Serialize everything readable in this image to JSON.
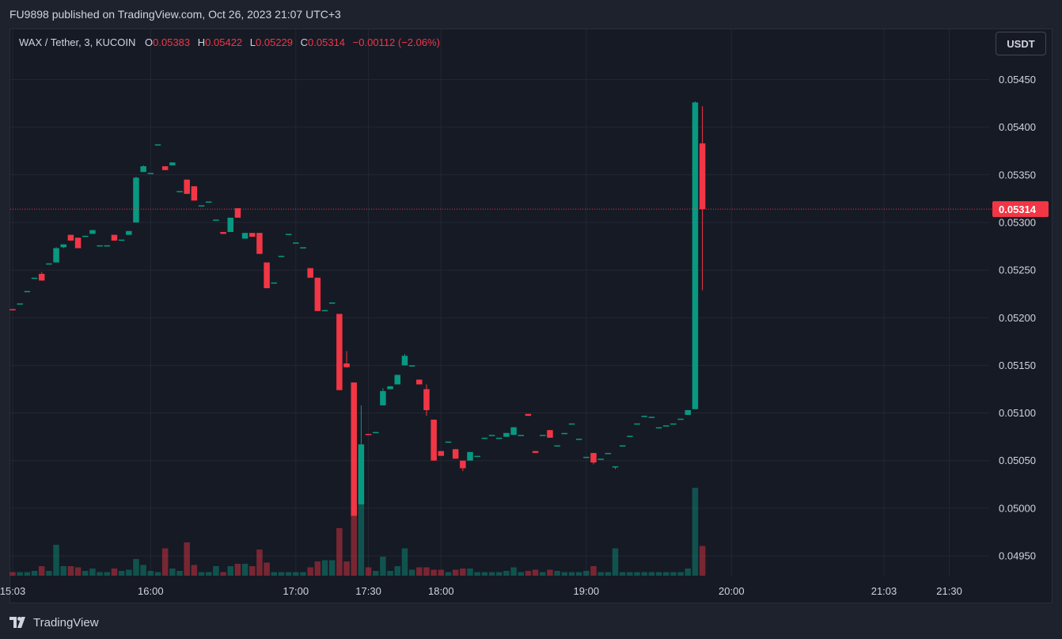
{
  "header": {
    "published_text": "FU9898 published on TradingView.com, Oct 26, 2023 21:07 UTC+3"
  },
  "legend": {
    "symbol": "WAX / Tether, 3, KUCOIN",
    "o_label": "O",
    "o_value": "0.05383",
    "h_label": "H",
    "h_value": "0.05422",
    "l_label": "L",
    "l_value": "0.05229",
    "c_label": "C",
    "c_value": "0.05314",
    "change": "−0.00112 (−2.06%)"
  },
  "currency_button": "USDT",
  "footer": {
    "brand": "TradingView"
  },
  "colors": {
    "up": "#089981",
    "down": "#f23645",
    "background": "#161a25",
    "grid": "#232733",
    "text": "#d1d4dc"
  },
  "chart_data": {
    "type": "candlestick",
    "interval": "3",
    "exchange": "KUCOIN",
    "pair": "WAX / Tether",
    "price_axis_ticks": [
      "0.05450",
      "0.05400",
      "0.05350",
      "0.05300",
      "0.05250",
      "0.05200",
      "0.05150",
      "0.05100",
      "0.05050",
      "0.05000",
      "0.04950"
    ],
    "time_axis_ticks": [
      "15:03",
      "16:00",
      "17:00",
      "17:30",
      "18:00",
      "19:00",
      "20:00",
      "21:03",
      "21:30"
    ],
    "ylim": [
      0.04927,
      0.05475
    ],
    "last_price": "0.05314",
    "time_labels_at_minutes": [
      903,
      960,
      1020,
      1050,
      1080,
      1140,
      1200,
      1263,
      1290
    ],
    "candles": [
      {
        "t": 903,
        "o": 0.05209,
        "h": 0.05209,
        "l": 0.05208,
        "c": 0.05208,
        "v": 0.3
      },
      {
        "t": 906,
        "o": 0.05215,
        "h": 0.05215,
        "l": 0.05215,
        "c": 0.05215,
        "v": 0.3
      },
      {
        "t": 909,
        "o": 0.05227,
        "h": 0.05228,
        "l": 0.05227,
        "c": 0.05228,
        "v": 0.3
      },
      {
        "t": 912,
        "o": 0.05241,
        "h": 0.05242,
        "l": 0.05241,
        "c": 0.05242,
        "v": 0.4
      },
      {
        "t": 915,
        "o": 0.05246,
        "h": 0.05248,
        "l": 0.05239,
        "c": 0.05239,
        "v": 0.8
      },
      {
        "t": 918,
        "o": 0.05256,
        "h": 0.05257,
        "l": 0.05256,
        "c": 0.05257,
        "v": 0.4
      },
      {
        "t": 921,
        "o": 0.05258,
        "h": 0.05274,
        "l": 0.05258,
        "c": 0.05273,
        "v": 2.6
      },
      {
        "t": 924,
        "o": 0.05274,
        "h": 0.05277,
        "l": 0.05273,
        "c": 0.05277,
        "v": 0.8
      },
      {
        "t": 927,
        "o": 0.05287,
        "h": 0.05287,
        "l": 0.05281,
        "c": 0.05281,
        "v": 0.8
      },
      {
        "t": 930,
        "o": 0.05284,
        "h": 0.05284,
        "l": 0.05273,
        "c": 0.05273,
        "v": 0.7
      },
      {
        "t": 933,
        "o": 0.05285,
        "h": 0.05286,
        "l": 0.05285,
        "c": 0.05286,
        "v": 0.4
      },
      {
        "t": 936,
        "o": 0.05288,
        "h": 0.05292,
        "l": 0.05288,
        "c": 0.05292,
        "v": 0.6
      },
      {
        "t": 939,
        "o": 0.05276,
        "h": 0.05276,
        "l": 0.05276,
        "c": 0.05276,
        "v": 0.3
      },
      {
        "t": 942,
        "o": 0.05276,
        "h": 0.05276,
        "l": 0.05276,
        "c": 0.05276,
        "v": 0.3
      },
      {
        "t": 945,
        "o": 0.05287,
        "h": 0.05287,
        "l": 0.05281,
        "c": 0.05281,
        "v": 0.6
      },
      {
        "t": 948,
        "o": 0.05282,
        "h": 0.05282,
        "l": 0.05282,
        "c": 0.05282,
        "v": 0.4
      },
      {
        "t": 951,
        "o": 0.05287,
        "h": 0.05291,
        "l": 0.05287,
        "c": 0.05291,
        "v": 0.5
      },
      {
        "t": 954,
        "o": 0.053,
        "h": 0.05348,
        "l": 0.053,
        "c": 0.05347,
        "v": 1.4
      },
      {
        "t": 957,
        "o": 0.05353,
        "h": 0.0536,
        "l": 0.05353,
        "c": 0.05359,
        "v": 0.9
      },
      {
        "t": 960,
        "o": 0.05352,
        "h": 0.05352,
        "l": 0.05352,
        "c": 0.05352,
        "v": 0.4
      },
      {
        "t": 963,
        "o": 0.05382,
        "h": 0.05382,
        "l": 0.05382,
        "c": 0.05382,
        "v": 0.3
      },
      {
        "t": 966,
        "o": 0.05359,
        "h": 0.05359,
        "l": 0.05355,
        "c": 0.05355,
        "v": 2.3
      },
      {
        "t": 969,
        "o": 0.0536,
        "h": 0.05363,
        "l": 0.0536,
        "c": 0.05363,
        "v": 0.6
      },
      {
        "t": 972,
        "o": 0.05333,
        "h": 0.05333,
        "l": 0.05333,
        "c": 0.05333,
        "v": 0.4
      },
      {
        "t": 975,
        "o": 0.05345,
        "h": 0.05345,
        "l": 0.0533,
        "c": 0.0533,
        "v": 2.8
      },
      {
        "t": 978,
        "o": 0.05338,
        "h": 0.05338,
        "l": 0.05323,
        "c": 0.05323,
        "v": 0.9
      },
      {
        "t": 981,
        "o": 0.05318,
        "h": 0.05318,
        "l": 0.05318,
        "c": 0.05318,
        "v": 0.3
      },
      {
        "t": 984,
        "o": 0.05322,
        "h": 0.05322,
        "l": 0.05322,
        "c": 0.05322,
        "v": 0.3
      },
      {
        "t": 987,
        "o": 0.05303,
        "h": 0.05303,
        "l": 0.05303,
        "c": 0.05303,
        "v": 0.8
      },
      {
        "t": 990,
        "o": 0.0529,
        "h": 0.0529,
        "l": 0.05288,
        "c": 0.05288,
        "v": 0.3
      },
      {
        "t": 993,
        "o": 0.0529,
        "h": 0.05305,
        "l": 0.0529,
        "c": 0.05305,
        "v": 0.8
      },
      {
        "t": 996,
        "o": 0.05315,
        "h": 0.05315,
        "l": 0.05305,
        "c": 0.05305,
        "v": 1.0
      },
      {
        "t": 999,
        "o": 0.05283,
        "h": 0.05289,
        "l": 0.05283,
        "c": 0.05289,
        "v": 1.0
      },
      {
        "t": 1002,
        "o": 0.05289,
        "h": 0.05289,
        "l": 0.05285,
        "c": 0.05285,
        "v": 0.8
      },
      {
        "t": 1005,
        "o": 0.05289,
        "h": 0.05289,
        "l": 0.05267,
        "c": 0.05267,
        "v": 2.2
      },
      {
        "t": 1008,
        "o": 0.05258,
        "h": 0.05258,
        "l": 0.05231,
        "c": 0.05231,
        "v": 1.1
      },
      {
        "t": 1011,
        "o": 0.05237,
        "h": 0.05237,
        "l": 0.05237,
        "c": 0.05237,
        "v": 0.3
      },
      {
        "t": 1014,
        "o": 0.05265,
        "h": 0.05265,
        "l": 0.05265,
        "c": 0.05265,
        "v": 0.3
      },
      {
        "t": 1017,
        "o": 0.05288,
        "h": 0.05288,
        "l": 0.05288,
        "c": 0.05288,
        "v": 0.3
      },
      {
        "t": 1020,
        "o": 0.05279,
        "h": 0.05279,
        "l": 0.05279,
        "c": 0.05279,
        "v": 0.3
      },
      {
        "t": 1023,
        "o": 0.05274,
        "h": 0.05274,
        "l": 0.05274,
        "c": 0.05274,
        "v": 0.3
      },
      {
        "t": 1026,
        "o": 0.05252,
        "h": 0.05252,
        "l": 0.05242,
        "c": 0.05242,
        "v": 0.7
      },
      {
        "t": 1029,
        "o": 0.05242,
        "h": 0.05242,
        "l": 0.05207,
        "c": 0.05207,
        "v": 1.2
      },
      {
        "t": 1032,
        "o": 0.05208,
        "h": 0.05208,
        "l": 0.05208,
        "c": 0.05208,
        "v": 1.3
      },
      {
        "t": 1035,
        "o": 0.05216,
        "h": 0.05216,
        "l": 0.05216,
        "c": 0.05216,
        "v": 1.3
      },
      {
        "t": 1038,
        "o": 0.05204,
        "h": 0.05204,
        "l": 0.05124,
        "c": 0.05124,
        "v": 4.0
      },
      {
        "t": 1041,
        "o": 0.05152,
        "h": 0.05165,
        "l": 0.05148,
        "c": 0.05148,
        "v": 1.2
      },
      {
        "t": 1044,
        "o": 0.05132,
        "h": 0.05132,
        "l": 0.04992,
        "c": 0.04992,
        "v": 11.2
      },
      {
        "t": 1047,
        "o": 0.05004,
        "h": 0.05108,
        "l": 0.05004,
        "c": 0.05067,
        "v": 9.0
      },
      {
        "t": 1050,
        "o": 0.05078,
        "h": 0.05078,
        "l": 0.05077,
        "c": 0.05077,
        "v": 0.7
      },
      {
        "t": 1053,
        "o": 0.0508,
        "h": 0.0508,
        "l": 0.0508,
        "c": 0.0508,
        "v": 0.4
      },
      {
        "t": 1056,
        "o": 0.05108,
        "h": 0.05126,
        "l": 0.05108,
        "c": 0.05123,
        "v": 1.6
      },
      {
        "t": 1059,
        "o": 0.05125,
        "h": 0.05128,
        "l": 0.05125,
        "c": 0.05128,
        "v": 0.4
      },
      {
        "t": 1062,
        "o": 0.0513,
        "h": 0.0514,
        "l": 0.0513,
        "c": 0.0514,
        "v": 0.8
      },
      {
        "t": 1065,
        "o": 0.0515,
        "h": 0.05162,
        "l": 0.0515,
        "c": 0.0516,
        "v": 2.3
      },
      {
        "t": 1068,
        "o": 0.0515,
        "h": 0.0515,
        "l": 0.0515,
        "c": 0.0515,
        "v": 0.5
      },
      {
        "t": 1071,
        "o": 0.05135,
        "h": 0.05135,
        "l": 0.0513,
        "c": 0.0513,
        "v": 0.7
      },
      {
        "t": 1074,
        "o": 0.05125,
        "h": 0.0513,
        "l": 0.05097,
        "c": 0.05103,
        "v": 0.7
      },
      {
        "t": 1077,
        "o": 0.05093,
        "h": 0.05093,
        "l": 0.0505,
        "c": 0.0505,
        "v": 0.5
      },
      {
        "t": 1080,
        "o": 0.0506,
        "h": 0.0506,
        "l": 0.05055,
        "c": 0.05055,
        "v": 0.5
      },
      {
        "t": 1083,
        "o": 0.0507,
        "h": 0.0507,
        "l": 0.0507,
        "c": 0.0507,
        "v": 0.3
      },
      {
        "t": 1086,
        "o": 0.05062,
        "h": 0.05062,
        "l": 0.05052,
        "c": 0.05052,
        "v": 0.5
      },
      {
        "t": 1089,
        "o": 0.0505,
        "h": 0.0505,
        "l": 0.05039,
        "c": 0.05042,
        "v": 0.6
      },
      {
        "t": 1092,
        "o": 0.0505,
        "h": 0.05059,
        "l": 0.0505,
        "c": 0.05059,
        "v": 0.6
      },
      {
        "t": 1095,
        "o": 0.05055,
        "h": 0.05055,
        "l": 0.05055,
        "c": 0.05055,
        "v": 0.3
      },
      {
        "t": 1098,
        "o": 0.05074,
        "h": 0.05074,
        "l": 0.05074,
        "c": 0.05074,
        "v": 0.3
      },
      {
        "t": 1101,
        "o": 0.05077,
        "h": 0.05077,
        "l": 0.05077,
        "c": 0.05077,
        "v": 0.3
      },
      {
        "t": 1104,
        "o": 0.05074,
        "h": 0.05074,
        "l": 0.05074,
        "c": 0.05074,
        "v": 0.3
      },
      {
        "t": 1107,
        "o": 0.05075,
        "h": 0.05079,
        "l": 0.05075,
        "c": 0.05079,
        "v": 0.4
      },
      {
        "t": 1110,
        "o": 0.05077,
        "h": 0.05085,
        "l": 0.05077,
        "c": 0.05085,
        "v": 0.7
      },
      {
        "t": 1113,
        "o": 0.05077,
        "h": 0.05077,
        "l": 0.05077,
        "c": 0.05077,
        "v": 0.3
      },
      {
        "t": 1116,
        "o": 0.05099,
        "h": 0.05099,
        "l": 0.05097,
        "c": 0.05097,
        "v": 0.4
      },
      {
        "t": 1119,
        "o": 0.0506,
        "h": 0.0506,
        "l": 0.05058,
        "c": 0.05058,
        "v": 0.5
      },
      {
        "t": 1122,
        "o": 0.05077,
        "h": 0.05077,
        "l": 0.05077,
        "c": 0.05077,
        "v": 0.3
      },
      {
        "t": 1125,
        "o": 0.05082,
        "h": 0.05082,
        "l": 0.05074,
        "c": 0.05074,
        "v": 0.5
      },
      {
        "t": 1128,
        "o": 0.05066,
        "h": 0.05066,
        "l": 0.05066,
        "c": 0.05066,
        "v": 0.4
      },
      {
        "t": 1131,
        "o": 0.05079,
        "h": 0.05079,
        "l": 0.05079,
        "c": 0.05079,
        "v": 0.3
      },
      {
        "t": 1134,
        "o": 0.05089,
        "h": 0.05089,
        "l": 0.05089,
        "c": 0.05089,
        "v": 0.3
      },
      {
        "t": 1137,
        "o": 0.05073,
        "h": 0.05073,
        "l": 0.05073,
        "c": 0.05073,
        "v": 0.3
      },
      {
        "t": 1140,
        "o": 0.05054,
        "h": 0.05054,
        "l": 0.05054,
        "c": 0.05054,
        "v": 0.4
      },
      {
        "t": 1143,
        "o": 0.05058,
        "h": 0.05058,
        "l": 0.05046,
        "c": 0.05048,
        "v": 0.8
      },
      {
        "t": 1146,
        "o": 0.05052,
        "h": 0.05052,
        "l": 0.05052,
        "c": 0.05052,
        "v": 0.3
      },
      {
        "t": 1149,
        "o": 0.05058,
        "h": 0.05058,
        "l": 0.05058,
        "c": 0.05058,
        "v": 0.3
      },
      {
        "t": 1152,
        "o": 0.05043,
        "h": 0.05044,
        "l": 0.05041,
        "c": 0.05044,
        "v": 2.3
      },
      {
        "t": 1155,
        "o": 0.05066,
        "h": 0.05066,
        "l": 0.05066,
        "c": 0.05066,
        "v": 0.3
      },
      {
        "t": 1158,
        "o": 0.05076,
        "h": 0.05076,
        "l": 0.05076,
        "c": 0.05076,
        "v": 0.3
      },
      {
        "t": 1161,
        "o": 0.05089,
        "h": 0.05089,
        "l": 0.05089,
        "c": 0.05089,
        "v": 0.3
      },
      {
        "t": 1164,
        "o": 0.05097,
        "h": 0.05097,
        "l": 0.05097,
        "c": 0.05097,
        "v": 0.3
      },
      {
        "t": 1167,
        "o": 0.05096,
        "h": 0.05096,
        "l": 0.05096,
        "c": 0.05096,
        "v": 0.3
      },
      {
        "t": 1170,
        "o": 0.05085,
        "h": 0.05085,
        "l": 0.05085,
        "c": 0.05085,
        "v": 0.3
      },
      {
        "t": 1173,
        "o": 0.05087,
        "h": 0.05087,
        "l": 0.05087,
        "c": 0.05087,
        "v": 0.3
      },
      {
        "t": 1176,
        "o": 0.05089,
        "h": 0.05089,
        "l": 0.05089,
        "c": 0.05089,
        "v": 0.3
      },
      {
        "t": 1179,
        "o": 0.05093,
        "h": 0.05094,
        "l": 0.05093,
        "c": 0.05094,
        "v": 0.3
      },
      {
        "t": 1182,
        "o": 0.05098,
        "h": 0.05103,
        "l": 0.05098,
        "c": 0.05103,
        "v": 0.6
      },
      {
        "t": 1185,
        "o": 0.05104,
        "h": 0.05427,
        "l": 0.05104,
        "c": 0.05426,
        "v": 7.4
      },
      {
        "t": 1188,
        "o": 0.05383,
        "h": 0.05422,
        "l": 0.05229,
        "c": 0.05314,
        "v": 2.5
      }
    ]
  }
}
